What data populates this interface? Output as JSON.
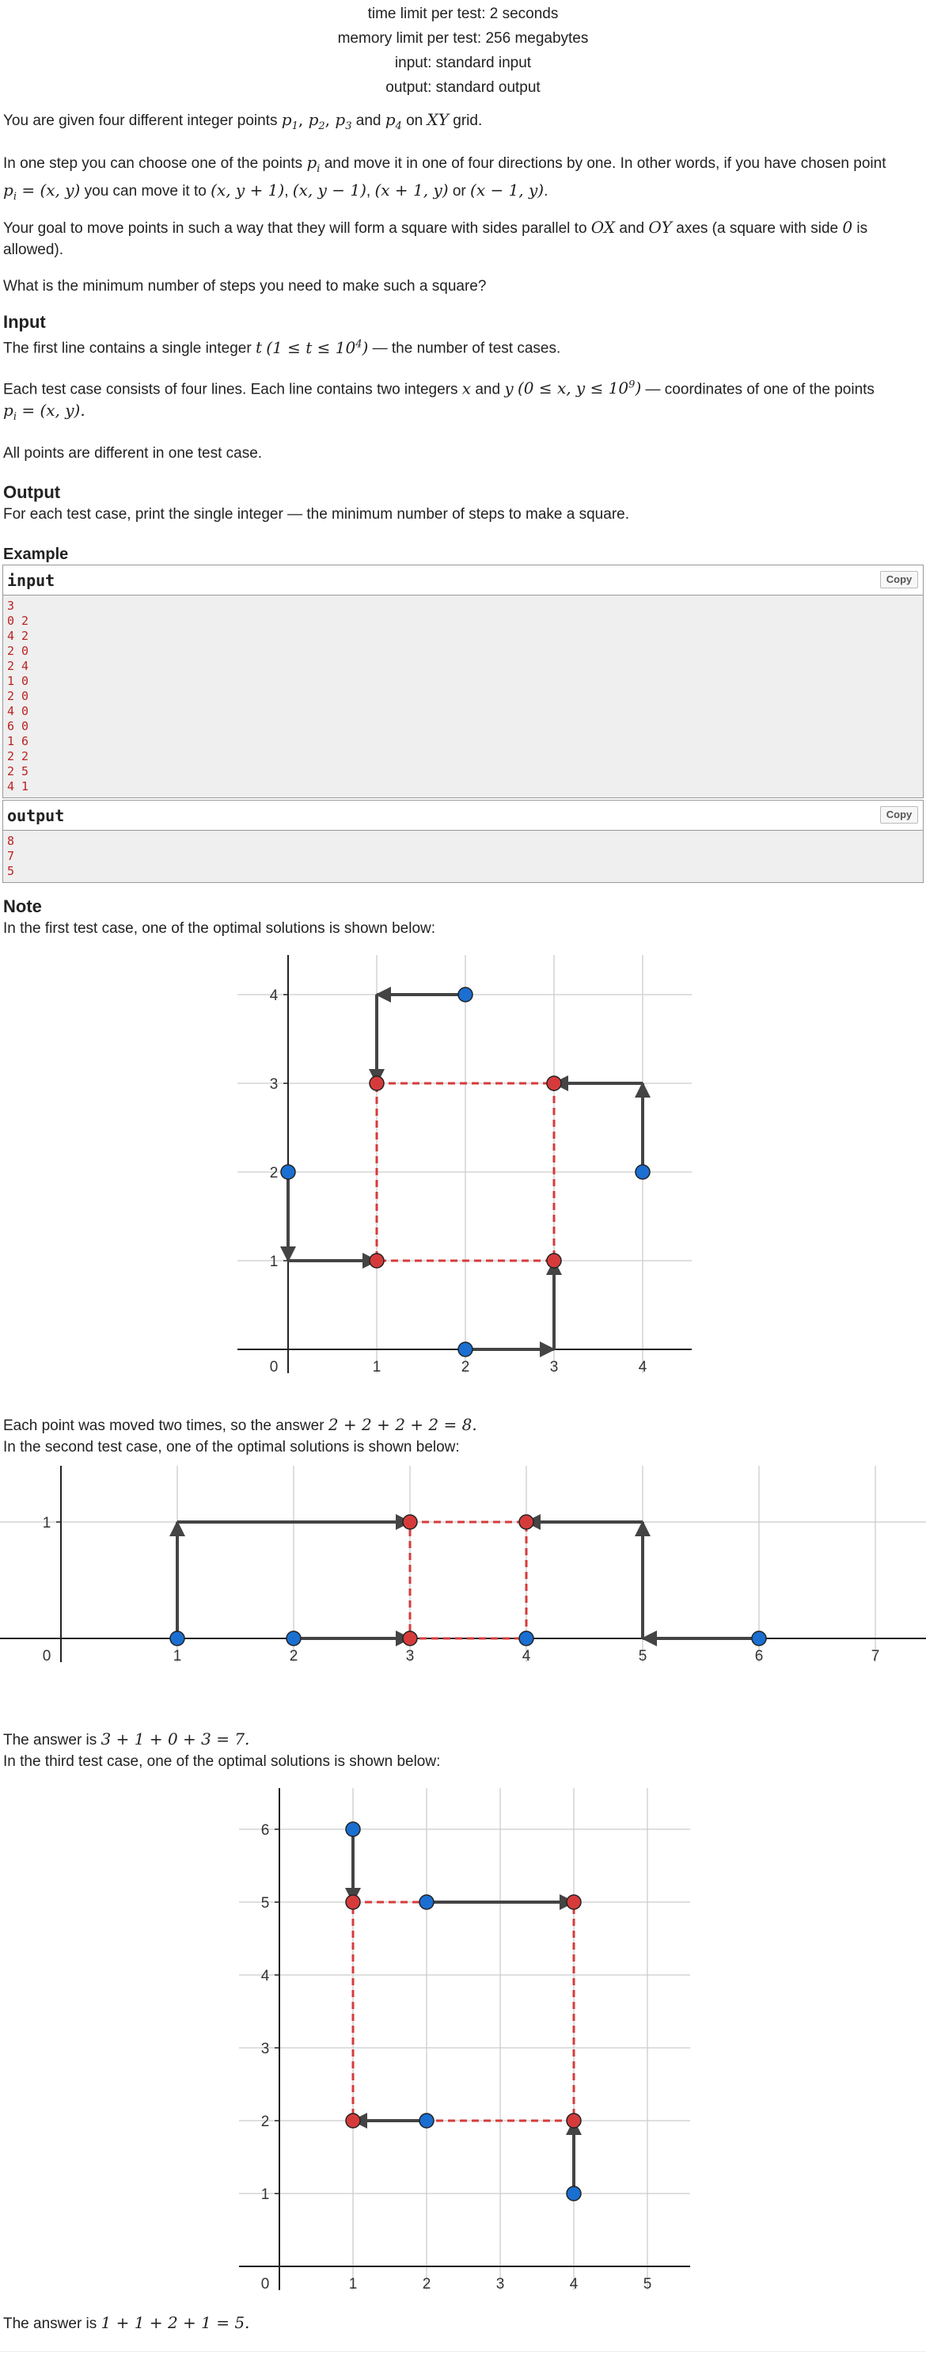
{
  "header": {
    "time_limit": "time limit per test: 2 seconds",
    "memory_limit": "memory limit per test: 256 megabytes",
    "input": "input: standard input",
    "output": "output: standard output"
  },
  "statement": {
    "p1_pre": "You are given four different integer points ",
    "p1_post": " grid.",
    "p2_a": "In one step you can choose one of the points ",
    "p2_b": " and move it in one of four directions by one. In other words, if you have chosen point",
    "p2_c": " you can move it to ",
    "p2_or": " or ",
    "p3_a": "Your goal to move points in such a way that they will form a square with sides parallel to ",
    "p3_and": " and ",
    "p3_b": " axes (a square with side ",
    "p3_c": " is",
    "p3_d": "allowed).",
    "p4": "What is the minimum number of steps you need to make such a square?"
  },
  "input_section": {
    "title": "Input",
    "line1_a": "The first line contains a single integer ",
    "line1_b": " — the number of test cases.",
    "line2_a": "Each test case consists of four lines. Each line contains two integers ",
    "line2_and": " and ",
    "line2_b": " — coordinates of one of the points",
    "line3": "All points are different in one test case."
  },
  "output_section": {
    "title": "Output",
    "line1": "For each test case, print the single integer — the minimum number of steps to make a square."
  },
  "example": {
    "title": "Example",
    "input_label": "input",
    "output_label": "output",
    "copy_label": "Copy",
    "input_lines": [
      "3",
      "0 2",
      "4 2",
      "2 0",
      "2 4",
      "1 0",
      "2 0",
      "4 0",
      "6 0",
      "1 6",
      "2 2",
      "2 5",
      "4 1"
    ],
    "output_lines": [
      "8",
      "7",
      "5"
    ]
  },
  "note": {
    "title": "Note",
    "first": "In the first test case, one of the optimal solutions is shown below:",
    "answer1_a": "Each point was moved two times, so the answer ",
    "second": "In the second test case, one of the optimal solutions is shown below:",
    "answer2_a": "The answer is ",
    "third": "In the third test case, one of the optimal solutions is shown below:",
    "answer3_a": "The answer is "
  },
  "math": {
    "p1": "p",
    "p1sub": "1",
    "p2sub": "2",
    "p3sub": "3",
    "p4sub": "4",
    "comma": ",",
    "and": " and ",
    "XY": "XY",
    "pi": "p",
    "isub": "i",
    "pi_def": " = (x, y)",
    "moves": [
      "(x, y + 1)",
      "(x, y − 1)",
      "(x + 1, y)",
      "(x − 1, y)"
    ],
    "OX": "OX",
    "OY": "OY",
    "zero": "0",
    "t_range_pre": "(1 ≤ t ≤ 10",
    "t_range_sup": "4",
    "t_range_post": ")",
    "t": "t",
    "x": "x",
    "y": "y",
    "xy_range_pre": "(0 ≤ x, y ≤ 10",
    "xy_range_sup": "9",
    "xy_range_post": ")",
    "pi_eq": " = (x, y).",
    "eq1": "2 + 2 + 2 + 2 = 8.",
    "eq2": "3 + 1 + 0 + 3 = 7.",
    "eq3": "1 + 1 + 2 + 1 = 5."
  },
  "colors": {
    "blue_point": "#1a6fd1",
    "red_point": "#d63b3b",
    "arrow": "#444444",
    "grid": "#cccccc"
  },
  "chart_data": [
    {
      "type": "scatter",
      "title": "",
      "xlabel": "",
      "ylabel": "",
      "x_ticks": [
        "0",
        "1",
        "2",
        "3",
        "4"
      ],
      "y_ticks": [
        "1",
        "2",
        "3",
        "4"
      ],
      "xlim": [
        -0.2,
        4.5
      ],
      "ylim": [
        -0.2,
        4.5
      ],
      "grid": true,
      "blue_points": [
        [
          2,
          4
        ],
        [
          0,
          2
        ],
        [
          4,
          2
        ],
        [
          2,
          0
        ]
      ],
      "red_points": [
        [
          1,
          3
        ],
        [
          3,
          3
        ],
        [
          1,
          1
        ],
        [
          3,
          1
        ]
      ],
      "square": [
        [
          1,
          1
        ],
        [
          3,
          3
        ]
      ],
      "arrows": [
        [
          [
            2,
            4
          ],
          [
            1,
            4
          ]
        ],
        [
          [
            1,
            4
          ],
          [
            1,
            3
          ]
        ],
        [
          [
            4,
            2
          ],
          [
            4,
            3
          ]
        ],
        [
          [
            4,
            3
          ],
          [
            3,
            3
          ]
        ],
        [
          [
            0,
            2
          ],
          [
            0,
            1
          ]
        ],
        [
          [
            0,
            1
          ],
          [
            1,
            1
          ]
        ],
        [
          [
            2,
            0
          ],
          [
            3,
            0
          ]
        ],
        [
          [
            3,
            0
          ],
          [
            3,
            1
          ]
        ]
      ]
    },
    {
      "type": "scatter",
      "title": "",
      "xlabel": "",
      "ylabel": "",
      "x_ticks": [
        "0",
        "1",
        "2",
        "3",
        "4",
        "5",
        "6",
        "7"
      ],
      "y_ticks": [
        "1"
      ],
      "xlim": [
        -0.5,
        7.45
      ],
      "ylim": [
        -0.3,
        1.5
      ],
      "grid": true,
      "blue_points": [
        [
          1,
          0
        ],
        [
          2,
          0
        ],
        [
          4,
          0
        ],
        [
          6,
          0
        ]
      ],
      "red_points": [
        [
          3,
          1
        ],
        [
          4,
          1
        ],
        [
          3,
          0
        ]
      ],
      "square": [
        [
          3,
          0
        ],
        [
          4,
          1
        ]
      ],
      "arrows": [
        [
          [
            1,
            0
          ],
          [
            1,
            1
          ]
        ],
        [
          [
            1,
            1
          ],
          [
            3,
            1
          ]
        ],
        [
          [
            2,
            0
          ],
          [
            3,
            0
          ]
        ],
        [
          [
            6,
            0
          ],
          [
            5,
            0
          ]
        ],
        [
          [
            5,
            0
          ],
          [
            5,
            1
          ]
        ],
        [
          [
            5,
            1
          ],
          [
            4,
            1
          ]
        ]
      ]
    },
    {
      "type": "scatter",
      "title": "",
      "xlabel": "",
      "ylabel": "",
      "x_ticks": [
        "0",
        "1",
        "2",
        "3",
        "4",
        "5"
      ],
      "y_ticks": [
        "1",
        "2",
        "3",
        "4",
        "5",
        "6"
      ],
      "xlim": [
        -0.2,
        5.6
      ],
      "ylim": [
        -0.2,
        6.6
      ],
      "grid": true,
      "blue_points": [
        [
          1,
          6
        ],
        [
          2,
          5
        ],
        [
          2,
          2
        ],
        [
          4,
          1
        ]
      ],
      "red_points": [
        [
          1,
          5
        ],
        [
          4,
          5
        ],
        [
          1,
          2
        ],
        [
          4,
          2
        ]
      ],
      "square": [
        [
          1,
          2
        ],
        [
          4,
          5
        ]
      ],
      "arrows": [
        [
          [
            1,
            6
          ],
          [
            1,
            5
          ]
        ],
        [
          [
            2,
            5
          ],
          [
            4,
            5
          ]
        ],
        [
          [
            2,
            2
          ],
          [
            1,
            2
          ]
        ],
        [
          [
            4,
            1
          ],
          [
            4,
            2
          ]
        ]
      ]
    }
  ]
}
